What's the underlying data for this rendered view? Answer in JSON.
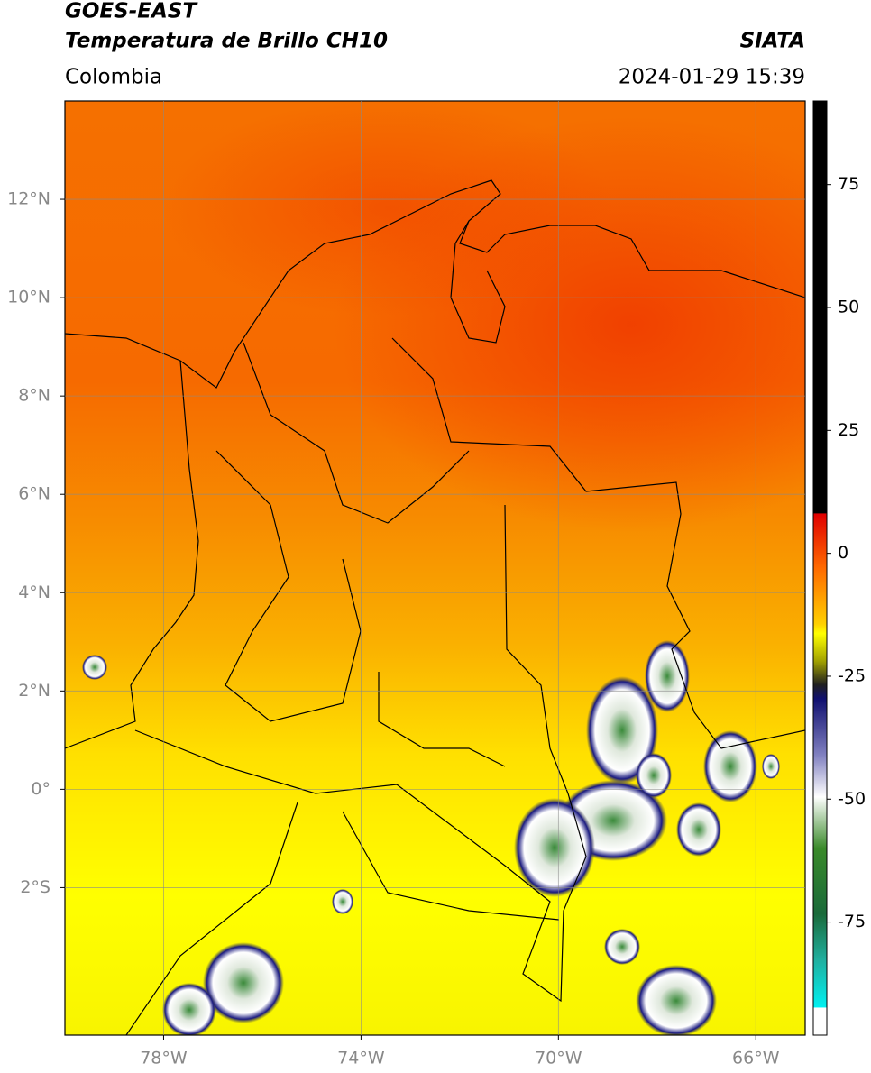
{
  "header": {
    "title": "GOES-EAST",
    "subtitle": "Temperatura de Brillo CH10",
    "region": "Colombia",
    "source": "SIATA",
    "timestamp": "2024-01-29 15:39"
  },
  "map": {
    "xlim": [
      -80,
      -65
    ],
    "ylim": [
      -5,
      14
    ],
    "xticks": [
      {
        "value": -78,
        "label": "78°W"
      },
      {
        "value": -74,
        "label": "74°W"
      },
      {
        "value": -70,
        "label": "70°W"
      },
      {
        "value": -66,
        "label": "66°W"
      }
    ],
    "yticks": [
      {
        "value": -2,
        "label": "2°S"
      },
      {
        "value": 0,
        "label": "0°"
      },
      {
        "value": 2,
        "label": "2°N"
      },
      {
        "value": 4,
        "label": "4°N"
      },
      {
        "value": 6,
        "label": "6°N"
      },
      {
        "value": 8,
        "label": "8°N"
      },
      {
        "value": 10,
        "label": "10°N"
      },
      {
        "value": 12,
        "label": "12°N"
      }
    ],
    "grid": true
  },
  "colorbar": {
    "lim": [
      -98,
      92
    ],
    "ticks": [
      75,
      50,
      25,
      0,
      -25,
      -50,
      -75
    ]
  }
}
